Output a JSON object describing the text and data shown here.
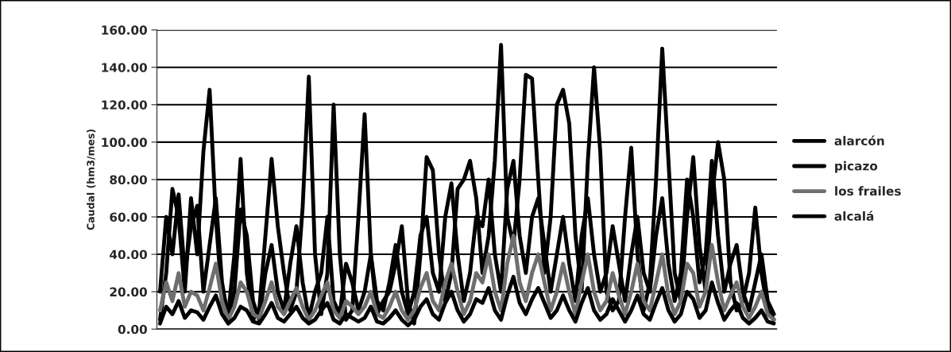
{
  "chart_data": {
    "type": "line",
    "ylabel": "Caudal (hm3/mes)",
    "categories": [
      null,
      null,
      null,
      null,
      null,
      null,
      null,
      null,
      null,
      null,
      null,
      null,
      null,
      null,
      null,
      null,
      null,
      null,
      null,
      null,
      null,
      null,
      null,
      null,
      null,
      null,
      null,
      null,
      null,
      null,
      null,
      null,
      null,
      null,
      null,
      null,
      null,
      null,
      null,
      null,
      null,
      null,
      null,
      null,
      null,
      null,
      null,
      null,
      null,
      null,
      null,
      null,
      null,
      null,
      null,
      null,
      null,
      null,
      null,
      null,
      null,
      null,
      null,
      null,
      null,
      null,
      null,
      null,
      null,
      null,
      null,
      null,
      null,
      null,
      null,
      null,
      null,
      null,
      null,
      null,
      null,
      null,
      null,
      null,
      null,
      null,
      null,
      null,
      null,
      null,
      null,
      null,
      null,
      null,
      null,
      null,
      null,
      null,
      null,
      null
    ],
    "series": [
      {
        "name": "alarcón",
        "color": "#000000",
        "values": [
          5,
          30,
          75,
          60,
          20,
          70,
          40,
          95,
          128,
          60,
          15,
          8,
          40,
          91,
          30,
          5,
          10,
          50,
          91,
          55,
          30,
          10,
          20,
          65,
          135,
          40,
          8,
          30,
          120,
          40,
          5,
          10,
          60,
          115,
          40,
          8,
          15,
          20,
          35,
          55,
          15,
          3,
          40,
          92,
          85,
          40,
          15,
          30,
          75,
          80,
          90,
          70,
          30,
          50,
          90,
          152,
          60,
          45,
          80,
          136,
          134,
          80,
          30,
          60,
          120,
          128,
          110,
          50,
          20,
          90,
          140,
          95,
          20,
          10,
          15,
          60,
          97,
          40,
          10,
          25,
          80,
          150,
          90,
          30,
          15,
          60,
          92,
          45,
          20,
          70,
          100,
          80,
          25,
          10,
          15,
          30,
          65,
          30,
          10,
          5
        ]
      },
      {
        "name": "picazo",
        "color": "#000000",
        "values": [
          20,
          60,
          40,
          72,
          30,
          55,
          66,
          20,
          45,
          70,
          25,
          6,
          20,
          64,
          50,
          15,
          5,
          30,
          45,
          20,
          10,
          35,
          55,
          25,
          6,
          20,
          30,
          60,
          15,
          8,
          35,
          25,
          10,
          20,
          40,
          15,
          10,
          25,
          45,
          20,
          8,
          20,
          50,
          60,
          30,
          20,
          60,
          78,
          40,
          15,
          30,
          60,
          55,
          80,
          40,
          20,
          75,
          90,
          50,
          30,
          60,
          70,
          45,
          20,
          40,
          60,
          35,
          15,
          50,
          70,
          40,
          20,
          30,
          55,
          35,
          15,
          40,
          60,
          30,
          20,
          50,
          70,
          35,
          15,
          30,
          80,
          60,
          25,
          40,
          90,
          50,
          20,
          35,
          45,
          20,
          10,
          25,
          40,
          15,
          8
        ]
      },
      {
        "name": "los frailes",
        "color": "#6e6e6e",
        "values": [
          10,
          25,
          15,
          30,
          12,
          20,
          18,
          10,
          22,
          35,
          15,
          5,
          12,
          25,
          20,
          8,
          6,
          15,
          25,
          12,
          8,
          15,
          22,
          12,
          5,
          10,
          18,
          25,
          10,
          6,
          15,
          12,
          8,
          12,
          20,
          8,
          6,
          12,
          20,
          10,
          5,
          10,
          22,
          30,
          15,
          10,
          25,
          35,
          20,
          8,
          15,
          30,
          25,
          40,
          20,
          10,
          35,
          50,
          25,
          15,
          30,
          40,
          25,
          10,
          20,
          35,
          20,
          8,
          25,
          40,
          20,
          10,
          15,
          30,
          18,
          8,
          20,
          35,
          15,
          10,
          25,
          40,
          18,
          8,
          15,
          35,
          30,
          12,
          20,
          45,
          25,
          10,
          18,
          25,
          12,
          6,
          12,
          20,
          8,
          5
        ]
      },
      {
        "name": "alcalá",
        "color": "#000000",
        "values": [
          3,
          12,
          8,
          15,
          6,
          10,
          9,
          5,
          12,
          18,
          8,
          3,
          6,
          12,
          10,
          4,
          3,
          8,
          14,
          6,
          4,
          8,
          12,
          6,
          3,
          5,
          10,
          14,
          5,
          3,
          8,
          6,
          4,
          6,
          12,
          4,
          3,
          6,
          10,
          5,
          2,
          5,
          12,
          16,
          8,
          5,
          14,
          20,
          10,
          4,
          8,
          16,
          14,
          22,
          10,
          5,
          18,
          28,
          14,
          8,
          16,
          22,
          14,
          6,
          10,
          18,
          10,
          4,
          14,
          22,
          10,
          5,
          8,
          16,
          10,
          4,
          10,
          18,
          8,
          5,
          14,
          22,
          10,
          4,
          8,
          20,
          16,
          6,
          10,
          25,
          14,
          5,
          10,
          14,
          6,
          3,
          6,
          10,
          4,
          3
        ]
      }
    ],
    "ylim": [
      0,
      160
    ],
    "yticks": [
      {
        "value": 0,
        "label": "0.00"
      },
      {
        "value": 20,
        "label": "20.00"
      },
      {
        "value": 40,
        "label": "40.00"
      },
      {
        "value": 60,
        "label": "60.00"
      },
      {
        "value": 80,
        "label": "80.00"
      },
      {
        "value": 100,
        "label": "100.00"
      },
      {
        "value": 120,
        "label": "120.00"
      },
      {
        "value": 140,
        "label": "140.00"
      },
      {
        "value": 160,
        "label": "160.00"
      }
    ],
    "grid": "y",
    "legend": "right",
    "tick_labels": "y"
  }
}
